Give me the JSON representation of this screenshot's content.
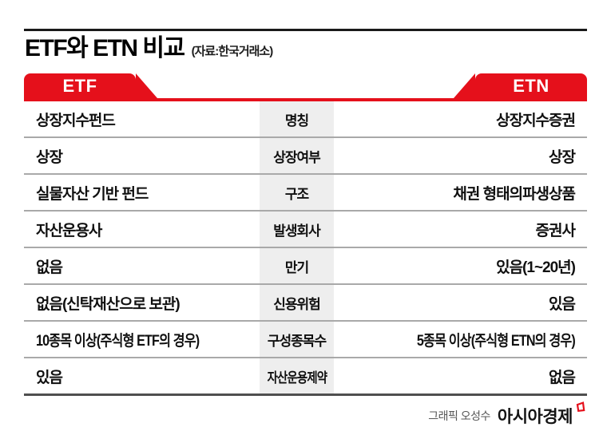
{
  "title": {
    "main": "ETF와 ETN 비교",
    "source": "(자료:한국거래소)"
  },
  "banners": {
    "left": "ETF",
    "right": "ETN"
  },
  "table": {
    "rows": [
      {
        "etf": "상장지수펀드",
        "label": "명칭",
        "etn": "상장지수증권"
      },
      {
        "etf": "상장",
        "label": "상장여부",
        "etn": "상장"
      },
      {
        "etf": "실물자산 기반 펀드",
        "label": "구조",
        "etn": "채권 형태의파생상품"
      },
      {
        "etf": "자산운용사",
        "label": "발생회사",
        "etn": "증권사"
      },
      {
        "etf": "없음",
        "label": "만기",
        "etn": "있음(1~20년)"
      },
      {
        "etf": "없음(신탁재산으로 보관)",
        "label": "신용위험",
        "etn": "있음"
      },
      {
        "etf": "10종목 이상(주식형 ETF의 경우)",
        "label": "구성종목수",
        "etn": "5종목 이상(주식형 ETN의 경우)"
      },
      {
        "etf": "있음",
        "label": "자산운용제약",
        "etn": "없음"
      }
    ]
  },
  "footer": {
    "credit": "그래픽 오성수",
    "logo": "아시아경제"
  },
  "colors": {
    "accent_red": "#e5101b",
    "label_bg": "#eeeeee",
    "top_rule": "#1a1a1a",
    "row_divider": "#a9a9a9",
    "table_bottom": "#4f4f4f"
  }
}
